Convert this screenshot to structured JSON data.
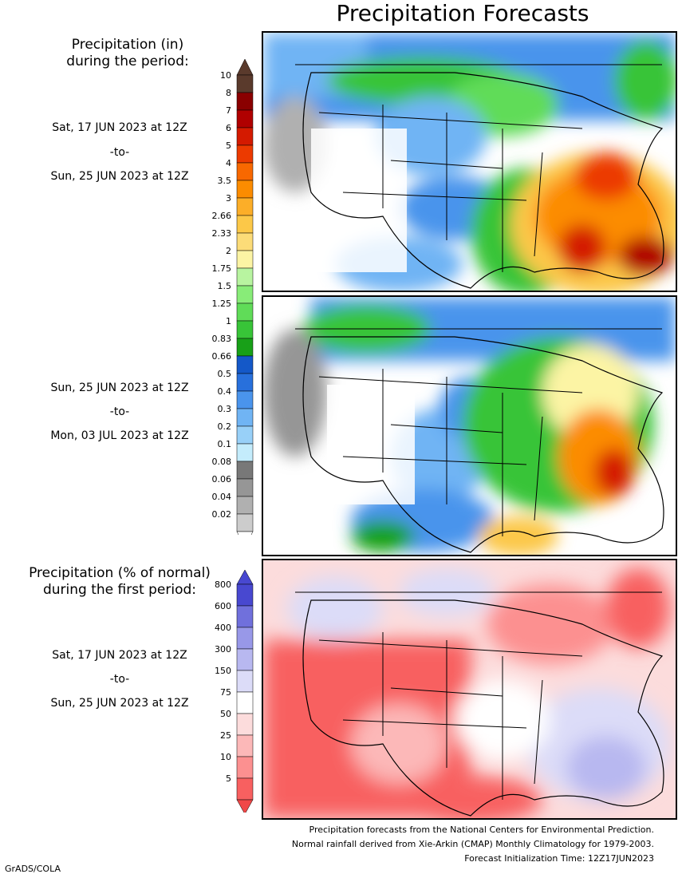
{
  "title": "Precipitation Forecasts",
  "panel1": {
    "heading_line1": "Precipitation (in)",
    "heading_line2": "during the period:",
    "from": "Sat, 17 JUN 2023 at 12Z",
    "to_word": "-to-",
    "until": "Sun, 25 JUN 2023 at 12Z"
  },
  "panel2": {
    "from": "Sun, 25 JUN 2023 at 12Z",
    "to_word": "-to-",
    "until": "Mon, 03 JUL 2023 at 12Z"
  },
  "panel3": {
    "heading_line1": "Precipitation (% of normal)",
    "heading_line2": "during the first period:",
    "from": "Sat, 17 JUN 2023 at 12Z",
    "to_word": "-to-",
    "until": "Sun, 25 JUN 2023 at 12Z"
  },
  "precip_scale": {
    "labels": [
      "10",
      "8",
      "7",
      "6",
      "5",
      "4",
      "3.5",
      "3",
      "2.66",
      "2.33",
      "2",
      "1.75",
      "1.5",
      "1.25",
      "1",
      "0.83",
      "0.66",
      "0.5",
      "0.4",
      "0.3",
      "0.2",
      "0.1",
      "0.08",
      "0.06",
      "0.04",
      "0.02"
    ],
    "colors": [
      "#5a3a2c",
      "#8a0000",
      "#b00000",
      "#d41a00",
      "#ec3a00",
      "#f86800",
      "#fc8c00",
      "#fcae28",
      "#fcc848",
      "#fcdc78",
      "#fcf4a4",
      "#b8f4a0",
      "#88ec78",
      "#60dc58",
      "#38c438",
      "#18a018",
      "#1458c8",
      "#2870dc",
      "#4a94ec",
      "#70b4f4",
      "#98d0f8",
      "#c4ecfc",
      "#787878",
      "#969696",
      "#b0b0b0",
      "#cccccc"
    ],
    "top_cap_color": "#5a3a2c"
  },
  "pct_scale": {
    "labels": [
      "800",
      "600",
      "400",
      "300",
      "150",
      "75",
      "50",
      "25",
      "10",
      "5"
    ],
    "colors": [
      "#4848d0",
      "#7070dc",
      "#9898e8",
      "#b8b8f0",
      "#dcdcf8",
      "#ffffff",
      "#fcdcdc",
      "#fcb8b8",
      "#fc9090",
      "#f86060"
    ],
    "top_cap_color": "#4848d0",
    "bottom_cap_color": "#f04848"
  },
  "footer": {
    "line1": "Precipitation forecasts from the National Centers for Environmental Prediction.",
    "line2": "Normal rainfall derived from Xie-Arkin (CMAP) Monthly Climatology for 1979-2003.",
    "line3": "Forecast Initialization Time: 12Z17JUN2023"
  },
  "credit": "GrADS/COLA"
}
